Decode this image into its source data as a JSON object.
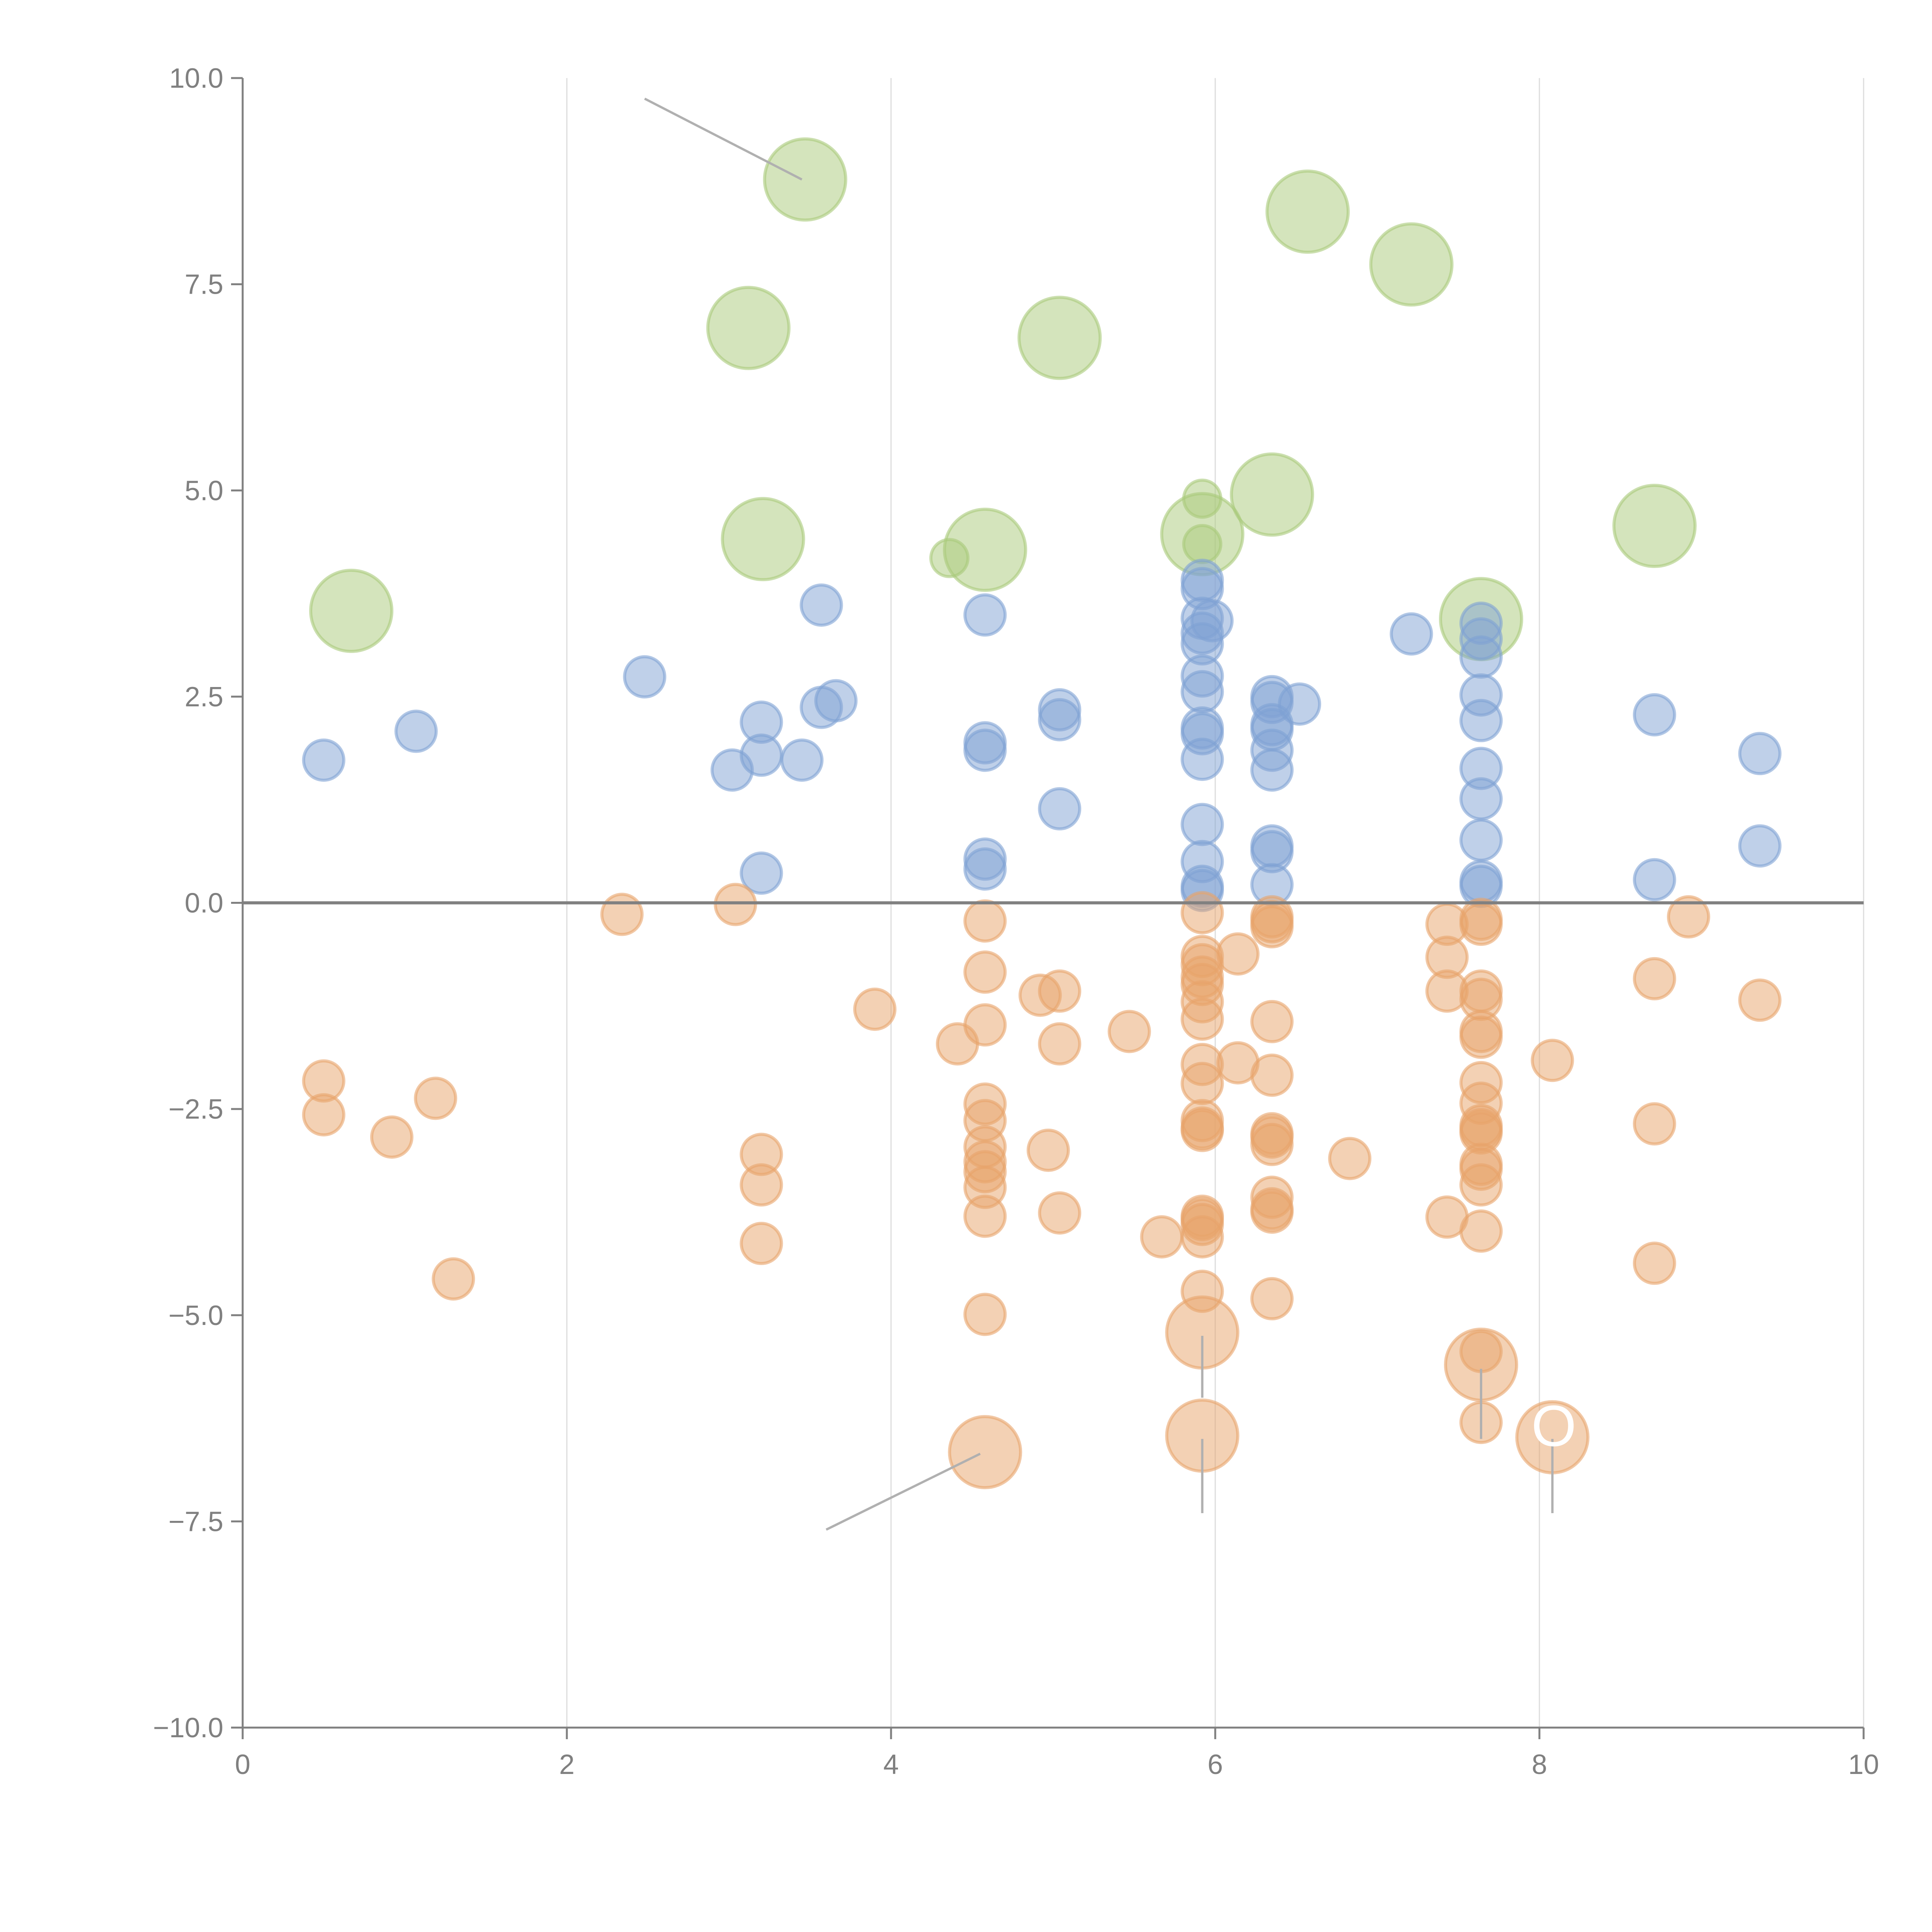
{
  "chart_data": {
    "type": "scatter",
    "title": "",
    "xlabel": "",
    "ylabel": "",
    "xlim": [
      0,
      10
    ],
    "ylim": [
      -10,
      10
    ],
    "grid": "vertical at major x ticks",
    "legend": "none",
    "x_ticks": [
      0,
      2,
      4,
      6,
      8,
      10
    ],
    "x_tick_labels": [
      "0",
      "2",
      "4",
      "6",
      "8",
      "10"
    ],
    "y_ticks": [
      -10,
      -7.5,
      -5,
      -2.5,
      0,
      2.5,
      5,
      7.5,
      10
    ],
    "y_tick_labels": [
      "−10.0",
      "−7.5",
      "−5.0",
      "−2.5",
      "0.0",
      "2.5",
      "5.0",
      "7.5",
      "10.0"
    ],
    "zero_line": 0,
    "series": [
      {
        "name": "green",
        "color": "#a9c97a",
        "points": [
          {
            "x": 3.47,
            "y": 8.77,
            "size": "large"
          },
          {
            "x": 6.57,
            "y": 8.38,
            "size": "large"
          },
          {
            "x": 7.21,
            "y": 7.74,
            "size": "large"
          },
          {
            "x": 3.12,
            "y": 6.97,
            "size": "large"
          },
          {
            "x": 5.04,
            "y": 6.85,
            "size": "large"
          },
          {
            "x": 6.35,
            "y": 4.95,
            "size": "large"
          },
          {
            "x": 5.92,
            "y": 4.9,
            "size": "small"
          },
          {
            "x": 3.21,
            "y": 4.41,
            "size": "large"
          },
          {
            "x": 4.58,
            "y": 4.28,
            "size": "large"
          },
          {
            "x": 4.36,
            "y": 4.18,
            "size": "small"
          },
          {
            "x": 5.92,
            "y": 4.47,
            "size": "large"
          },
          {
            "x": 5.92,
            "y": 4.35,
            "size": "small"
          },
          {
            "x": 8.71,
            "y": 4.57,
            "size": "large"
          },
          {
            "x": 0.67,
            "y": 3.54,
            "size": "large"
          },
          {
            "x": 7.64,
            "y": 3.44,
            "size": "large"
          }
        ]
      },
      {
        "name": "blue",
        "color": "#7fa1d3",
        "points": [
          {
            "x": 0.5,
            "y": 1.73
          },
          {
            "x": 1.07,
            "y": 2.08
          },
          {
            "x": 2.48,
            "y": 2.74
          },
          {
            "x": 3.02,
            "y": 1.61
          },
          {
            "x": 3.2,
            "y": 2.19
          },
          {
            "x": 3.2,
            "y": 1.79
          },
          {
            "x": 3.45,
            "y": 1.73
          },
          {
            "x": 3.57,
            "y": 3.61
          },
          {
            "x": 3.57,
            "y": 2.37
          },
          {
            "x": 3.66,
            "y": 2.45
          },
          {
            "x": 3.2,
            "y": 0.36
          },
          {
            "x": 4.58,
            "y": 3.49
          },
          {
            "x": 4.58,
            "y": 1.94
          },
          {
            "x": 4.58,
            "y": 1.85
          },
          {
            "x": 4.58,
            "y": 0.53
          },
          {
            "x": 4.58,
            "y": 0.41
          },
          {
            "x": 5.04,
            "y": 2.34
          },
          {
            "x": 5.04,
            "y": 2.22
          },
          {
            "x": 5.04,
            "y": 1.14
          },
          {
            "x": 5.92,
            "y": 3.91
          },
          {
            "x": 5.92,
            "y": 3.81
          },
          {
            "x": 5.92,
            "y": 3.45
          },
          {
            "x": 5.98,
            "y": 3.42
          },
          {
            "x": 5.92,
            "y": 3.27
          },
          {
            "x": 5.92,
            "y": 3.14
          },
          {
            "x": 5.92,
            "y": 2.75
          },
          {
            "x": 5.92,
            "y": 2.56
          },
          {
            "x": 5.92,
            "y": 2.12
          },
          {
            "x": 5.92,
            "y": 2.05
          },
          {
            "x": 5.92,
            "y": 1.74
          },
          {
            "x": 5.92,
            "y": 0.95
          },
          {
            "x": 5.92,
            "y": 0.5
          },
          {
            "x": 5.92,
            "y": 0.2
          },
          {
            "x": 5.92,
            "y": 0.15
          },
          {
            "x": 6.35,
            "y": 2.5
          },
          {
            "x": 6.35,
            "y": 2.43
          },
          {
            "x": 6.52,
            "y": 2.41
          },
          {
            "x": 6.35,
            "y": 2.16
          },
          {
            "x": 6.35,
            "y": 2.1
          },
          {
            "x": 6.35,
            "y": 1.85
          },
          {
            "x": 6.35,
            "y": 1.61
          },
          {
            "x": 6.35,
            "y": 0.69
          },
          {
            "x": 6.35,
            "y": 0.62
          },
          {
            "x": 6.35,
            "y": 0.22
          },
          {
            "x": 7.21,
            "y": 3.26
          },
          {
            "x": 7.64,
            "y": 3.39
          },
          {
            "x": 7.64,
            "y": 3.2
          },
          {
            "x": 7.64,
            "y": 2.98
          },
          {
            "x": 7.64,
            "y": 2.52
          },
          {
            "x": 7.64,
            "y": 2.21
          },
          {
            "x": 7.64,
            "y": 1.63
          },
          {
            "x": 7.64,
            "y": 1.26
          },
          {
            "x": 7.64,
            "y": 0.76
          },
          {
            "x": 7.64,
            "y": 0.26
          },
          {
            "x": 7.64,
            "y": 0.2
          },
          {
            "x": 8.71,
            "y": 2.28
          },
          {
            "x": 8.71,
            "y": 0.28
          },
          {
            "x": 9.36,
            "y": 1.81
          },
          {
            "x": 9.36,
            "y": 0.69
          }
        ]
      },
      {
        "name": "orange",
        "color": "#e8a46a",
        "points": [
          {
            "x": 2.34,
            "y": -0.14
          },
          {
            "x": 3.04,
            "y": -0.02
          },
          {
            "x": 0.5,
            "y": -2.16
          },
          {
            "x": 0.5,
            "y": -2.57
          },
          {
            "x": 0.92,
            "y": -2.84
          },
          {
            "x": 1.19,
            "y": -2.37
          },
          {
            "x": 1.3,
            "y": -4.56
          },
          {
            "x": 3.2,
            "y": -3.05
          },
          {
            "x": 3.2,
            "y": -3.42
          },
          {
            "x": 3.2,
            "y": -4.13
          },
          {
            "x": 3.9,
            "y": -1.29
          },
          {
            "x": 4.41,
            "y": -1.71
          },
          {
            "x": 4.58,
            "y": -0.22
          },
          {
            "x": 4.58,
            "y": -0.84
          },
          {
            "x": 4.58,
            "y": -1.48
          },
          {
            "x": 4.58,
            "y": -2.44
          },
          {
            "x": 4.58,
            "y": -2.64
          },
          {
            "x": 4.58,
            "y": -2.96
          },
          {
            "x": 4.58,
            "y": -3.14
          },
          {
            "x": 4.58,
            "y": -3.26
          },
          {
            "x": 4.58,
            "y": -3.45
          },
          {
            "x": 4.58,
            "y": -3.8
          },
          {
            "x": 4.58,
            "y": -4.99
          },
          {
            "x": 4.58,
            "y": -6.66,
            "size": "large"
          },
          {
            "x": 4.92,
            "y": -1.12
          },
          {
            "x": 5.04,
            "y": -1.07
          },
          {
            "x": 5.04,
            "y": -1.71
          },
          {
            "x": 4.97,
            "y": -3.0
          },
          {
            "x": 5.04,
            "y": -3.76
          },
          {
            "x": 5.47,
            "y": -1.56
          },
          {
            "x": 5.67,
            "y": -4.05
          },
          {
            "x": 5.92,
            "y": -0.12
          },
          {
            "x": 5.92,
            "y": -0.65
          },
          {
            "x": 5.92,
            "y": -0.75
          },
          {
            "x": 5.92,
            "y": -0.9
          },
          {
            "x": 5.92,
            "y": -0.99
          },
          {
            "x": 5.92,
            "y": -1.2
          },
          {
            "x": 5.92,
            "y": -1.41
          },
          {
            "x": 5.92,
            "y": -1.96
          },
          {
            "x": 5.92,
            "y": -2.19
          },
          {
            "x": 5.92,
            "y": -2.64
          },
          {
            "x": 5.92,
            "y": -2.73
          },
          {
            "x": 5.92,
            "y": -2.76
          },
          {
            "x": 5.92,
            "y": -3.8
          },
          {
            "x": 5.92,
            "y": -3.84
          },
          {
            "x": 5.92,
            "y": -3.9
          },
          {
            "x": 5.92,
            "y": -4.05
          },
          {
            "x": 5.92,
            "y": -4.71
          },
          {
            "x": 5.92,
            "y": -5.21,
            "size": "large"
          },
          {
            "x": 5.92,
            "y": -6.46,
            "size": "large"
          },
          {
            "x": 6.14,
            "y": -0.62
          },
          {
            "x": 6.14,
            "y": -1.94
          },
          {
            "x": 6.35,
            "y": -0.17
          },
          {
            "x": 6.35,
            "y": -0.23
          },
          {
            "x": 6.35,
            "y": -0.29
          },
          {
            "x": 6.35,
            "y": -1.44
          },
          {
            "x": 6.35,
            "y": -2.09
          },
          {
            "x": 6.35,
            "y": -2.8
          },
          {
            "x": 6.35,
            "y": -2.84
          },
          {
            "x": 6.35,
            "y": -2.93
          },
          {
            "x": 6.35,
            "y": -3.57
          },
          {
            "x": 6.35,
            "y": -3.71
          },
          {
            "x": 6.35,
            "y": -3.75
          },
          {
            "x": 6.35,
            "y": -4.8
          },
          {
            "x": 6.83,
            "y": -3.1
          },
          {
            "x": 7.43,
            "y": -0.26
          },
          {
            "x": 7.43,
            "y": -0.66
          },
          {
            "x": 7.43,
            "y": -1.07
          },
          {
            "x": 7.43,
            "y": -3.81
          },
          {
            "x": 7.64,
            "y": -0.2
          },
          {
            "x": 7.64,
            "y": -0.26
          },
          {
            "x": 7.64,
            "y": -1.07
          },
          {
            "x": 7.64,
            "y": -1.17
          },
          {
            "x": 7.64,
            "y": -1.56
          },
          {
            "x": 7.64,
            "y": -1.63
          },
          {
            "x": 7.64,
            "y": -2.18
          },
          {
            "x": 7.64,
            "y": -2.43
          },
          {
            "x": 7.64,
            "y": -2.7
          },
          {
            "x": 7.64,
            "y": -2.75
          },
          {
            "x": 7.64,
            "y": -2.79
          },
          {
            "x": 7.64,
            "y": -3.17
          },
          {
            "x": 7.64,
            "y": -3.23
          },
          {
            "x": 7.64,
            "y": -3.42
          },
          {
            "x": 7.64,
            "y": -3.98
          },
          {
            "x": 7.64,
            "y": -5.44
          },
          {
            "x": 7.64,
            "y": -5.6,
            "size": "large"
          },
          {
            "x": 7.64,
            "y": -6.3
          },
          {
            "x": 8.08,
            "y": -1.91
          },
          {
            "x": 8.08,
            "y": -6.48,
            "size": "large"
          },
          {
            "x": 8.71,
            "y": -0.92
          },
          {
            "x": 8.71,
            "y": -2.68
          },
          {
            "x": 8.71,
            "y": -4.37
          },
          {
            "x": 8.92,
            "y": -0.17
          },
          {
            "x": 9.36,
            "y": -1.18
          }
        ]
      }
    ],
    "annotations": [
      {
        "text": "OTA",
        "x": 7.95,
        "y": -6.35,
        "note": "white label text, partially visible"
      }
    ],
    "leader_lines": [
      {
        "from": [
          2.48,
          9.75
        ],
        "to": [
          3.45,
          8.77
        ],
        "color": "#b0b0b0"
      },
      {
        "from": [
          3.6,
          -7.6
        ],
        "to": [
          4.55,
          -6.68
        ],
        "color": "#b0b0b0"
      },
      {
        "from": [
          5.92,
          -5.25
        ],
        "to": [
          5.92,
          -6.0
        ],
        "color": "#b0b0b0"
      },
      {
        "from": [
          5.92,
          -6.5
        ],
        "to": [
          5.92,
          -7.4
        ],
        "color": "#b0b0b0"
      },
      {
        "from": [
          7.64,
          -5.65
        ],
        "to": [
          7.64,
          -6.5
        ],
        "color": "#b0b0b0"
      },
      {
        "from": [
          8.08,
          -6.5
        ],
        "to": [
          8.08,
          -7.4
        ],
        "color": "#b0b0b0"
      }
    ]
  }
}
